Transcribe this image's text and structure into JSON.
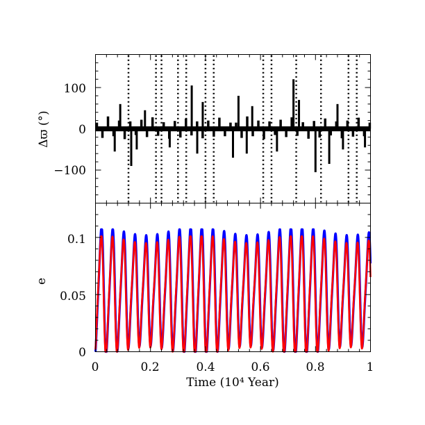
{
  "chart_data": [
    {
      "type": "scatter",
      "panel": "top",
      "ylabel": "Δϖ (°)",
      "ylim": [
        -180,
        180
      ],
      "yticks": [
        -100,
        0,
        100
      ],
      "ytick_labels": [
        "−100",
        "0",
        "100"
      ],
      "xlim": [
        0,
        1
      ],
      "grid": false,
      "series": [
        {
          "color": "#000000",
          "band_halfwidth": 6,
          "oscillation_period": 0.0405,
          "spikes_to_edge_x": [
            0.12,
            0.22,
            0.24,
            0.3,
            0.33,
            0.4,
            0.43,
            0.61,
            0.64,
            0.73,
            0.82,
            0.92,
            0.95
          ],
          "medium_spikes": [
            {
              "x": 0.07,
              "y": -55
            },
            {
              "x": 0.09,
              "y": 60
            },
            {
              "x": 0.13,
              "y": -90
            },
            {
              "x": 0.15,
              "y": -50
            },
            {
              "x": 0.18,
              "y": 45
            },
            {
              "x": 0.27,
              "y": -45
            },
            {
              "x": 0.35,
              "y": 105
            },
            {
              "x": 0.37,
              "y": -60
            },
            {
              "x": 0.39,
              "y": 65
            },
            {
              "x": 0.5,
              "y": -70
            },
            {
              "x": 0.52,
              "y": 80
            },
            {
              "x": 0.55,
              "y": -60
            },
            {
              "x": 0.57,
              "y": 55
            },
            {
              "x": 0.66,
              "y": -55
            },
            {
              "x": 0.72,
              "y": 120
            },
            {
              "x": 0.74,
              "y": 70
            },
            {
              "x": 0.8,
              "y": -105
            },
            {
              "x": 0.85,
              "y": -85
            },
            {
              "x": 0.88,
              "y": 60
            },
            {
              "x": 0.9,
              "y": -50
            },
            {
              "x": 0.98,
              "y": -45
            }
          ]
        }
      ]
    },
    {
      "type": "line",
      "panel": "bottom",
      "xlabel": "Time (10⁴ Year)",
      "ylabel": "e",
      "xlim": [
        0,
        1
      ],
      "ylim": [
        0,
        0.13
      ],
      "xticks": [
        0,
        0.2,
        0.4,
        0.6,
        0.8,
        1
      ],
      "xtick_labels": [
        "0",
        "0.2",
        "0.4",
        "0.6",
        "0.8",
        "1"
      ],
      "yticks": [
        0,
        0.05,
        0.1
      ],
      "ytick_labels": [
        "0",
        "0.05",
        "0.1"
      ],
      "grid": false,
      "series": [
        {
          "color": "#0000ff",
          "period": 0.0405,
          "min": 0.0,
          "max": 0.107
        },
        {
          "color": "#ff0000",
          "period": 0.0405,
          "min": 0.0,
          "max": 0.101
        }
      ]
    }
  ]
}
